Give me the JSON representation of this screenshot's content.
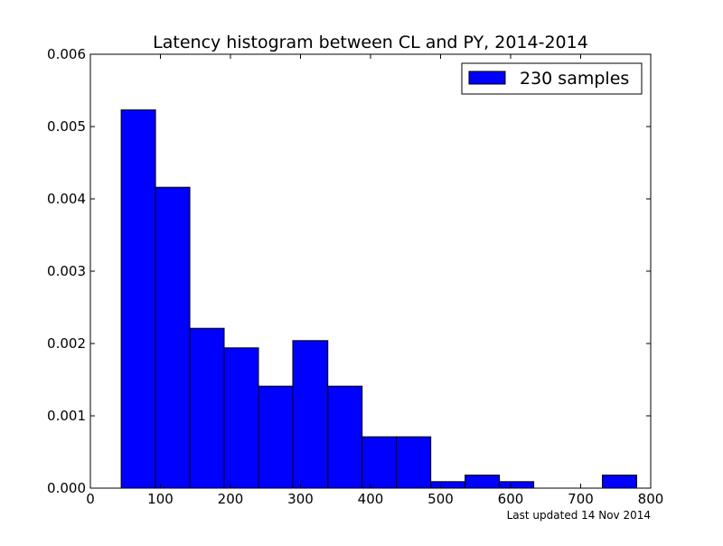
{
  "chart_data": {
    "type": "bar",
    "title": "Latency histogram between CL and PY, 2014-2014",
    "xlabel": "",
    "ylabel": "",
    "xlim": [
      0,
      800
    ],
    "ylim": [
      0,
      0.006
    ],
    "xticks": [
      0,
      100,
      200,
      300,
      400,
      500,
      600,
      700,
      800
    ],
    "xtick_labels": [
      "0",
      "100",
      "200",
      "300",
      "400",
      "500",
      "600",
      "700",
      "800"
    ],
    "yticks": [
      0,
      0.001,
      0.002,
      0.003,
      0.004,
      0.005,
      0.006
    ],
    "ytick_labels": [
      "0.000",
      "0.001",
      "0.002",
      "0.003",
      "0.004",
      "0.005",
      "0.006"
    ],
    "grid": false,
    "legend": {
      "position": "top-right",
      "entries": [
        "230 samples"
      ]
    },
    "series": [
      {
        "name": "230 samples",
        "color": "#0000ff",
        "bins": [
          {
            "x0": 44,
            "x1": 93,
            "value": 0.00523
          },
          {
            "x0": 93,
            "x1": 142,
            "value": 0.00416
          },
          {
            "x0": 142,
            "x1": 191,
            "value": 0.00221
          },
          {
            "x0": 191,
            "x1": 240,
            "value": 0.00194
          },
          {
            "x0": 240,
            "x1": 289,
            "value": 0.00141
          },
          {
            "x0": 289,
            "x1": 339,
            "value": 0.00204
          },
          {
            "x0": 339,
            "x1": 388,
            "value": 0.00141
          },
          {
            "x0": 388,
            "x1": 437,
            "value": 0.00071
          },
          {
            "x0": 437,
            "x1": 486,
            "value": 0.00071
          },
          {
            "x0": 486,
            "x1": 535,
            "value": 9e-05
          },
          {
            "x0": 535,
            "x1": 584,
            "value": 0.00018
          },
          {
            "x0": 584,
            "x1": 633,
            "value": 9e-05
          },
          {
            "x0": 633,
            "x1": 682,
            "value": 0
          },
          {
            "x0": 682,
            "x1": 731,
            "value": 0
          },
          {
            "x0": 731,
            "x1": 780,
            "value": 0.00018
          }
        ]
      }
    ],
    "annotations": [
      "Last updated 14 Nov 2014"
    ]
  },
  "colors": {
    "bar_fill": "#0000ff",
    "bar_edge": "#000000",
    "footer_text": "#808080"
  }
}
